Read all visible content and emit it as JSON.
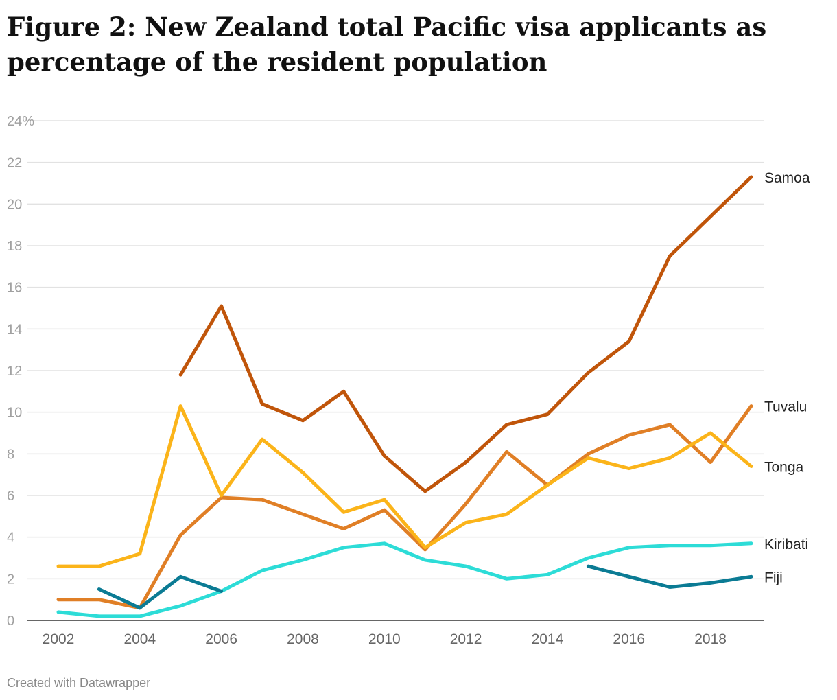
{
  "title": "Figure 2: New Zealand total Pacific visa applicants as percentage of the resident population",
  "footer": "Created with Datawrapper",
  "chart_data": {
    "type": "line",
    "x": [
      2002,
      2003,
      2004,
      2005,
      2006,
      2007,
      2008,
      2009,
      2010,
      2011,
      2012,
      2013,
      2014,
      2015,
      2016,
      2017,
      2018,
      2019
    ],
    "ylim": [
      0,
      24
    ],
    "y_ticks": [
      0,
      2,
      4,
      6,
      8,
      10,
      12,
      14,
      16,
      18,
      20,
      22,
      24
    ],
    "y_tick_labels": [
      "0",
      "2",
      "4",
      "6",
      "8",
      "10",
      "12",
      "14",
      "16",
      "18",
      "20",
      "22",
      "24%"
    ],
    "x_ticks": [
      2002,
      2004,
      2006,
      2008,
      2010,
      2012,
      2014,
      2016,
      2018
    ],
    "x_tick_labels": [
      "2002",
      "2004",
      "2006",
      "2008",
      "2010",
      "2012",
      "2014",
      "2016",
      "2018"
    ],
    "grid": true,
    "legend": "direct labels at line ends (right)",
    "series": [
      {
        "name": "Samoa",
        "color": "#c0550a",
        "values": [
          null,
          null,
          null,
          11.8,
          15.1,
          10.4,
          9.6,
          11.0,
          7.9,
          6.2,
          7.6,
          9.4,
          9.9,
          11.9,
          13.4,
          17.5,
          19.4,
          21.3
        ]
      },
      {
        "name": "Tuvalu",
        "color": "#e07f26",
        "values": [
          1.0,
          1.0,
          0.6,
          4.1,
          5.9,
          5.8,
          5.1,
          4.4,
          5.3,
          3.4,
          5.6,
          8.1,
          6.5,
          8.0,
          8.9,
          9.4,
          7.6,
          10.3
        ]
      },
      {
        "name": "Tonga",
        "color": "#fbb41a",
        "values": [
          2.6,
          2.6,
          3.2,
          10.3,
          6.0,
          8.7,
          7.1,
          5.2,
          5.8,
          3.5,
          4.7,
          5.1,
          6.5,
          7.8,
          7.3,
          7.8,
          9.0,
          7.4
        ]
      },
      {
        "name": "Kiribati",
        "color": "#2ddcd7",
        "values": [
          0.4,
          0.2,
          0.2,
          0.7,
          1.4,
          2.4,
          2.9,
          3.5,
          3.7,
          2.9,
          2.6,
          2.0,
          2.2,
          3.0,
          3.5,
          3.6,
          3.6,
          3.7
        ]
      },
      {
        "name": "Fiji",
        "color": "#0b7b94",
        "values": [
          null,
          1.5,
          0.6,
          2.1,
          1.4,
          null,
          null,
          null,
          null,
          null,
          null,
          null,
          null,
          2.6,
          2.1,
          1.6,
          1.8,
          2.1
        ]
      }
    ]
  }
}
